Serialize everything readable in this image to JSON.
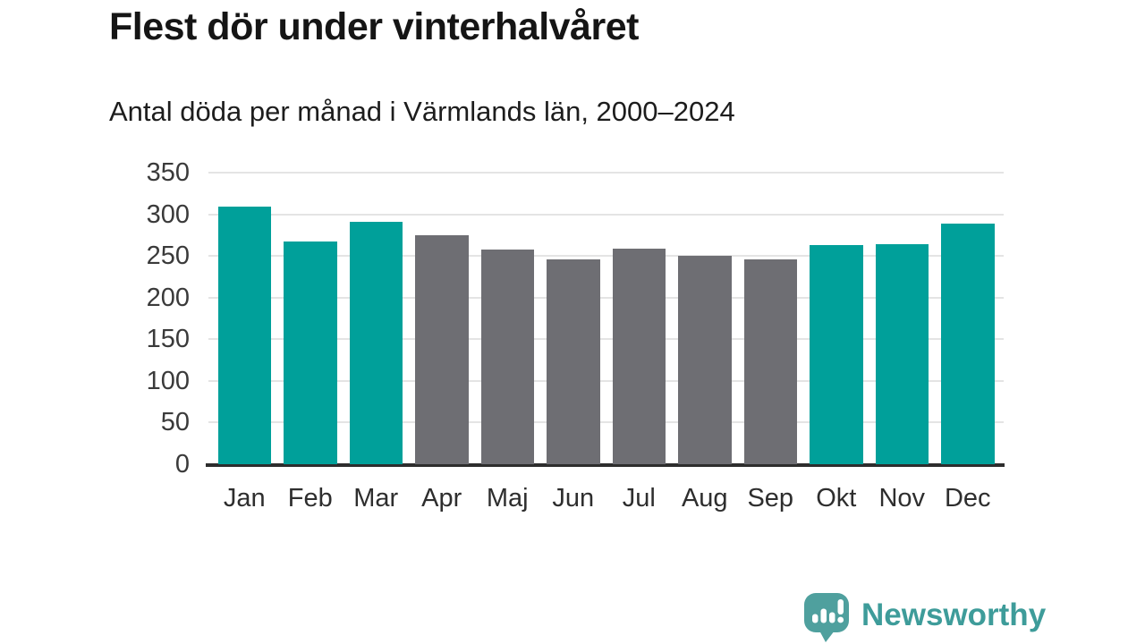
{
  "header": {
    "title": "Flest dör under vinterhalvåret",
    "subtitle": "Antal döda per månad i Värmlands län, 2000–2024"
  },
  "chart_data": {
    "type": "bar",
    "title": "Flest dör under vinterhalvåret",
    "subtitle": "Antal döda per månad i Värmlands län, 2000–2024",
    "categories": [
      "Jan",
      "Feb",
      "Mar",
      "Apr",
      "Maj",
      "Jun",
      "Jul",
      "Aug",
      "Sep",
      "Okt",
      "Nov",
      "Dec"
    ],
    "values": [
      309,
      267,
      291,
      275,
      258,
      246,
      259,
      250,
      246,
      263,
      264,
      289
    ],
    "bar_colors": [
      "#00A09A",
      "#00A09A",
      "#00A09A",
      "#6E6E73",
      "#6E6E73",
      "#6E6E73",
      "#6E6E73",
      "#6E6E73",
      "#6E6E73",
      "#00A09A",
      "#00A09A",
      "#00A09A"
    ],
    "color_meaning": {
      "winter_half_year_months": "#00A09A",
      "summer_half_year_months": "#6E6E73"
    },
    "xlabel": "",
    "ylabel": "",
    "ylim": [
      0,
      350
    ],
    "yticks": [
      0,
      50,
      100,
      150,
      200,
      250,
      300,
      350
    ],
    "grid": true,
    "legend": "none",
    "axis_color": "#2D2D2D",
    "grid_color": "#E4E4E4"
  },
  "footer": {
    "brand": "Newsworthy",
    "brand_color": "#3E9C9A",
    "logo_bubble_color": "#4FA09E",
    "logo_icon": "newsworthy-chart-speech-bubble-icon"
  }
}
